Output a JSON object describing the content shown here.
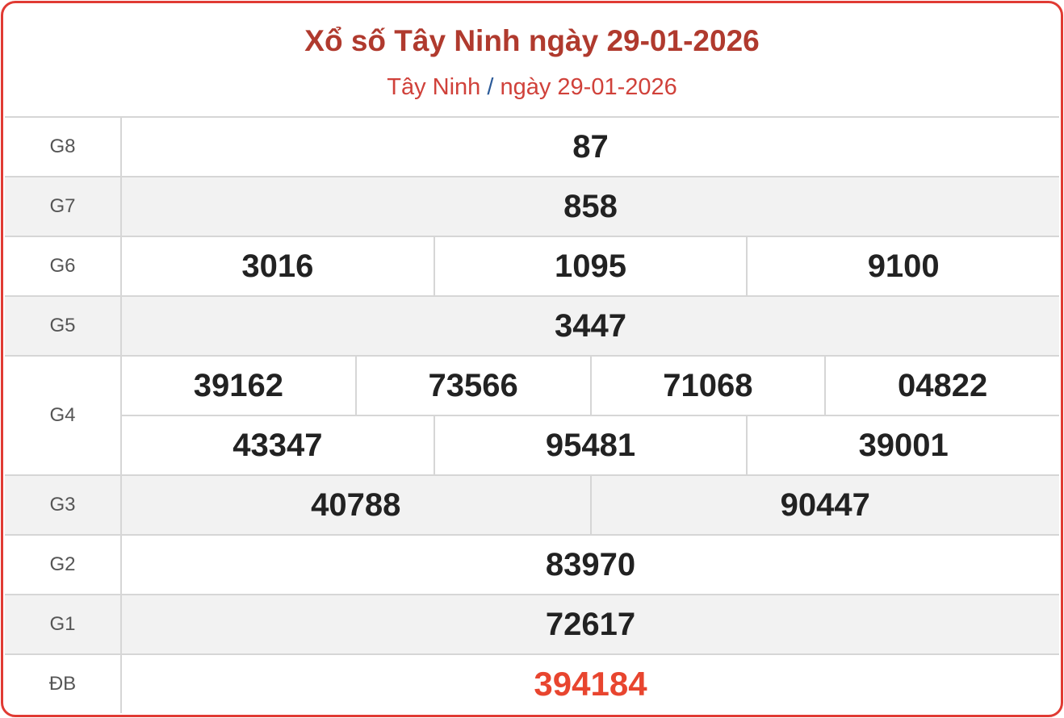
{
  "header": {
    "title": "Xổ số Tây Ninh ngày 29-01-2026",
    "breadcrumb": {
      "province": "Tây Ninh",
      "separator": "/",
      "date": "ngày 29-01-2026"
    }
  },
  "colors": {
    "border": "#e03a33",
    "title": "#b03a2e",
    "special": "#e8452f",
    "separator": "#2b5a98"
  },
  "prizes": [
    {
      "label": "G8",
      "lines": [
        [
          "87"
        ]
      ]
    },
    {
      "label": "G7",
      "lines": [
        [
          "858"
        ]
      ]
    },
    {
      "label": "G6",
      "lines": [
        [
          "3016",
          "1095",
          "9100"
        ]
      ]
    },
    {
      "label": "G5",
      "lines": [
        [
          "3447"
        ]
      ]
    },
    {
      "label": "G4",
      "lines": [
        [
          "39162",
          "73566",
          "71068",
          "04822"
        ],
        [
          "43347",
          "95481",
          "39001"
        ]
      ]
    },
    {
      "label": "G3",
      "lines": [
        [
          "40788",
          "90447"
        ]
      ]
    },
    {
      "label": "G2",
      "lines": [
        [
          "83970"
        ]
      ]
    },
    {
      "label": "G1",
      "lines": [
        [
          "72617"
        ]
      ]
    },
    {
      "label": "ĐB",
      "lines": [
        [
          "394184"
        ]
      ]
    }
  ]
}
